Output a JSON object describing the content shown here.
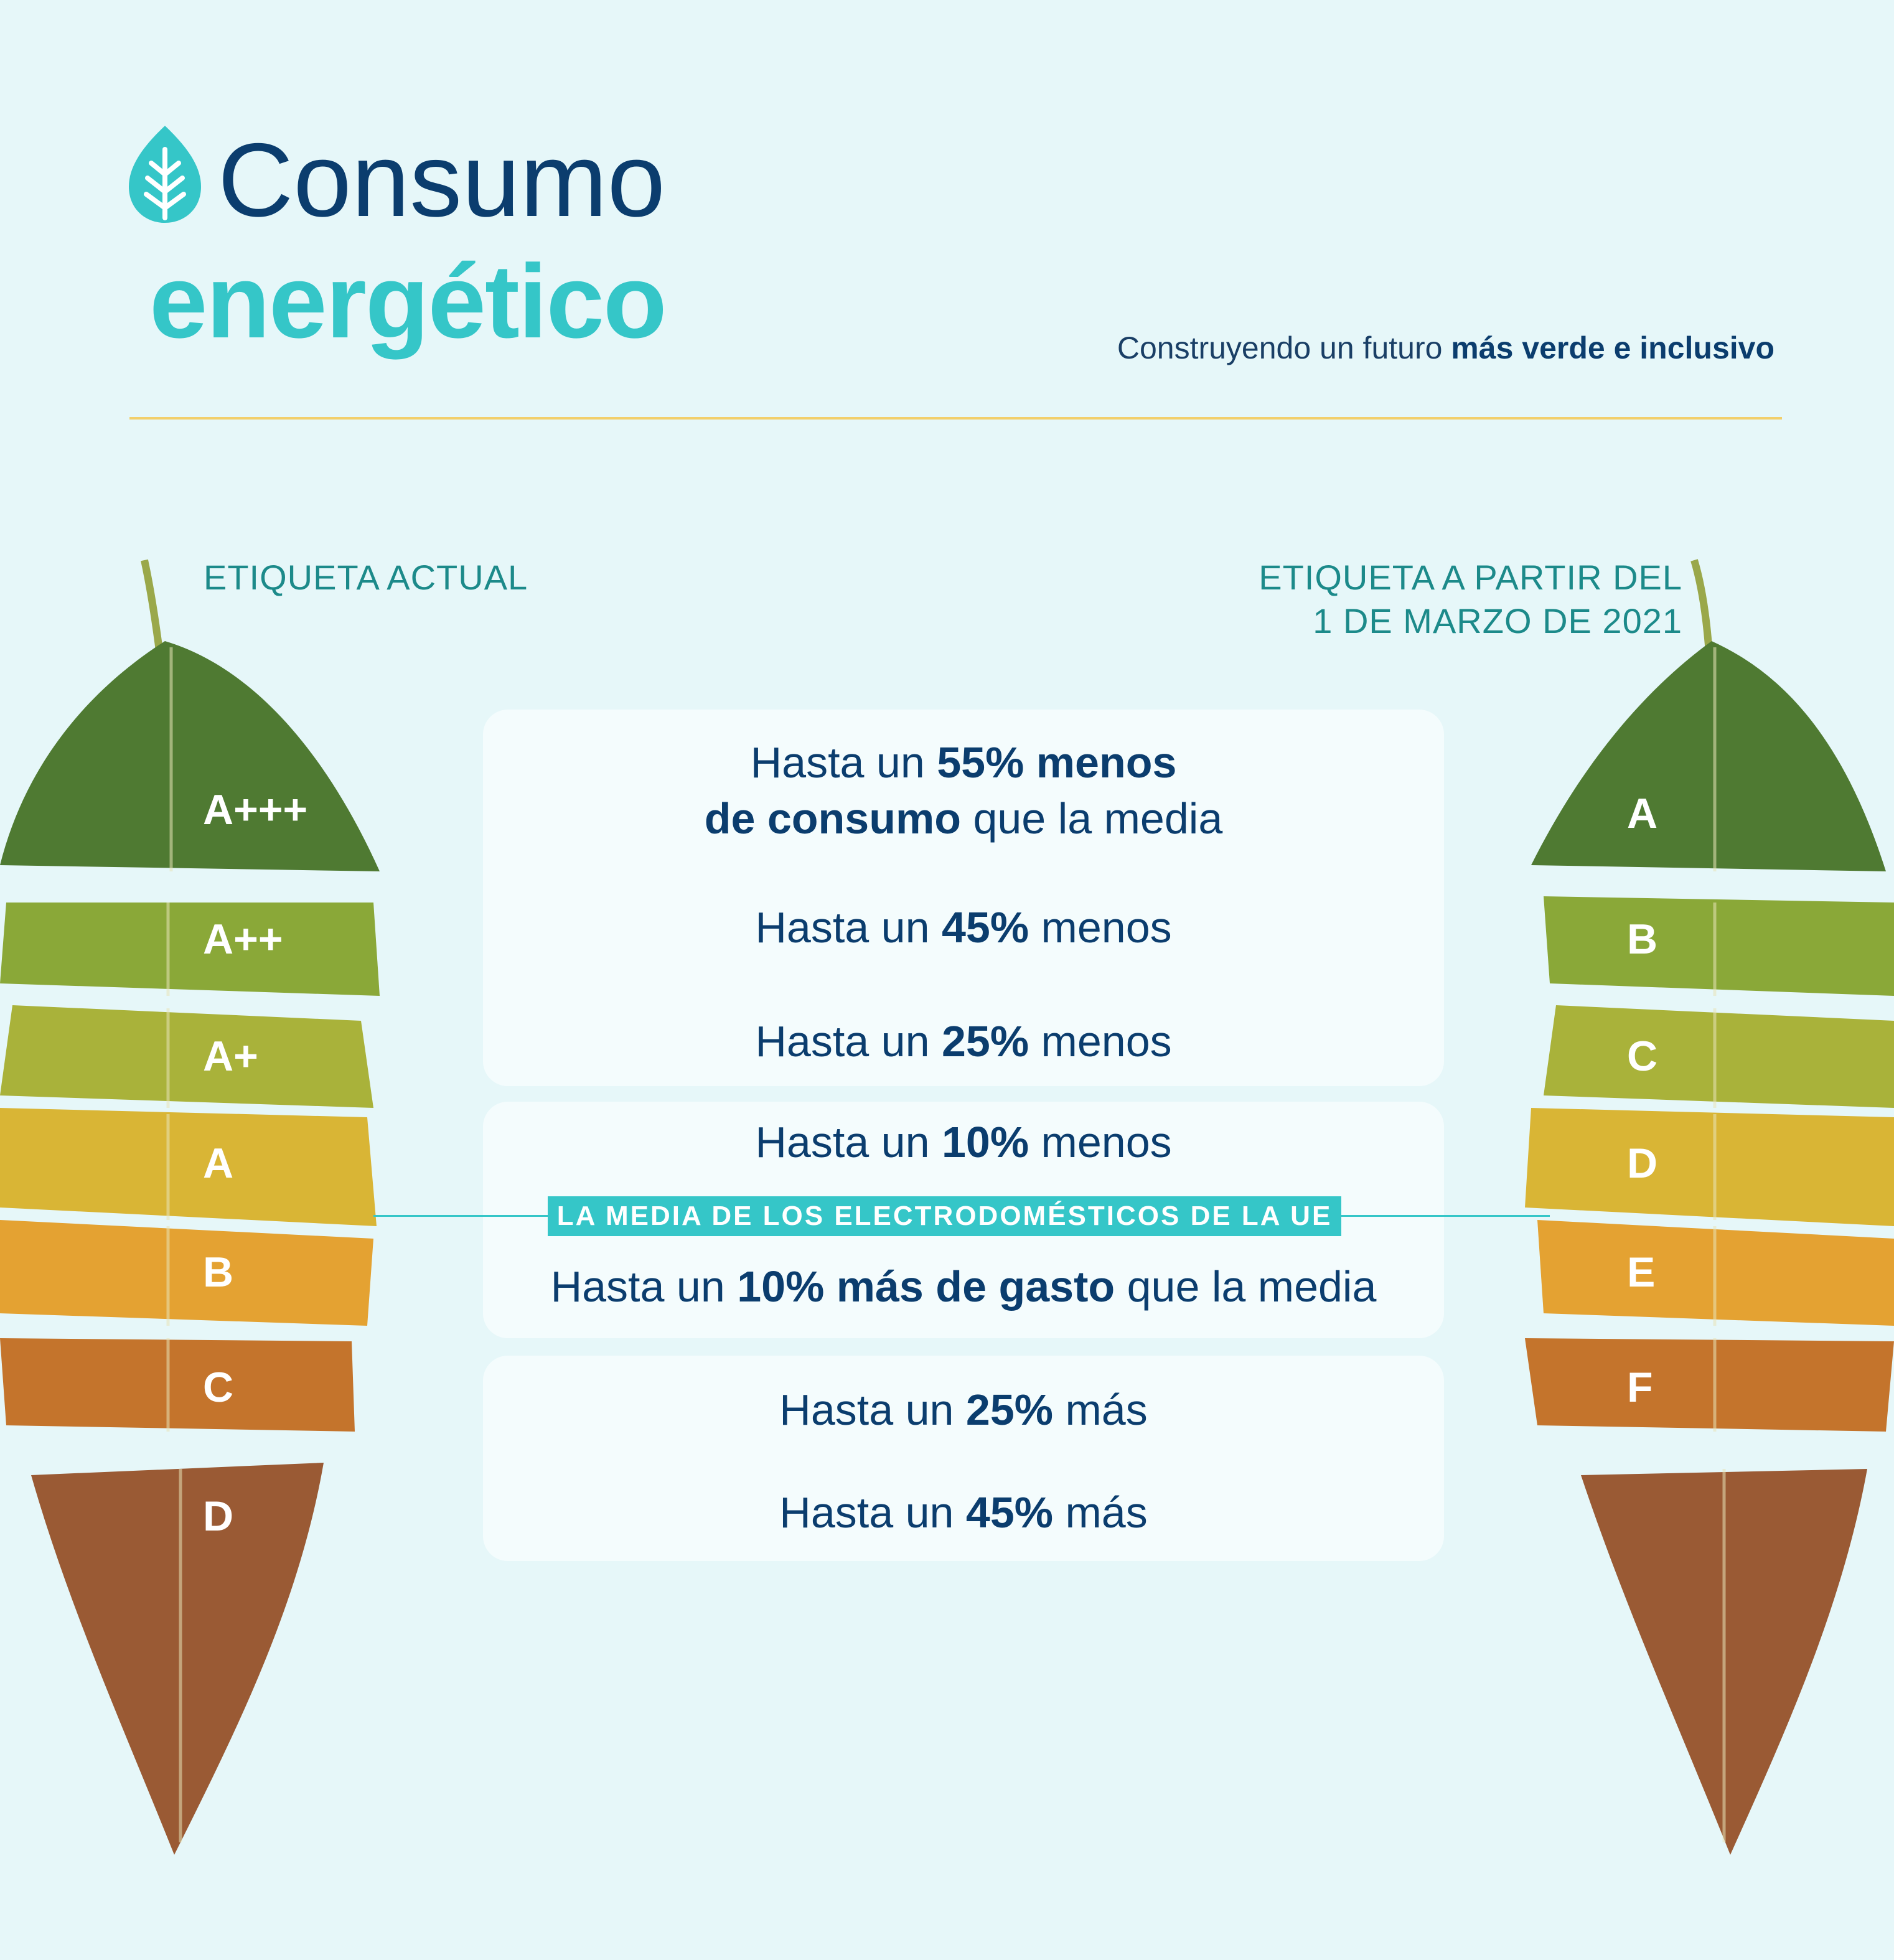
{
  "header": {
    "title_line1": "Consumo",
    "title_line2": "energético",
    "tagline_normal": "Construyendo un futuro ",
    "tagline_bold": "más verde e inclusivo",
    "logo_icon": "leaf-icon"
  },
  "labels": {
    "current": "ETIQUETA ACTUAL",
    "new_line1": "ETIQUETA A PARTIR DEL",
    "new_line2": "1 DE MARZO DE 2021"
  },
  "current_grades": [
    "A+++",
    "A++",
    "A+",
    "A",
    "B",
    "C",
    "D"
  ],
  "new_grades": [
    "A",
    "B",
    "C",
    "D",
    "E",
    "F"
  ],
  "rows": [
    {
      "pre": "Hasta un ",
      "bold": "55% menos",
      "post": ""
    },
    {
      "pre": "",
      "bold": "de consumo",
      "post": " que la media"
    },
    {
      "pre": "Hasta un ",
      "bold": "45%",
      "post": " menos"
    },
    {
      "pre": "Hasta un ",
      "bold": "25%",
      "post": " menos"
    },
    {
      "pre": "Hasta un ",
      "bold": "10%",
      "post": " menos"
    },
    {
      "pre": "Hasta un ",
      "bold": "10% más de gasto",
      "post": " que la media"
    },
    {
      "pre": "Hasta un ",
      "bold": "25%",
      "post": " más"
    },
    {
      "pre": "Hasta un ",
      "bold": "45%",
      "post": " más"
    }
  ],
  "average_badge": "LA MEDIA DE LOS ELECTRODOMÉSTICOS DE LA UE",
  "colors": {
    "background": "#e6f7f9",
    "navy": "#0b3d6e",
    "teal": "#35c6c8",
    "label_teal": "#1c8a8a",
    "divider": "#f2cf6b",
    "grade_colors": [
      "#4f7a32",
      "#8aa838",
      "#a9b23a",
      "#d9b535",
      "#e4a232",
      "#c4742c",
      "#9a5a34"
    ]
  }
}
